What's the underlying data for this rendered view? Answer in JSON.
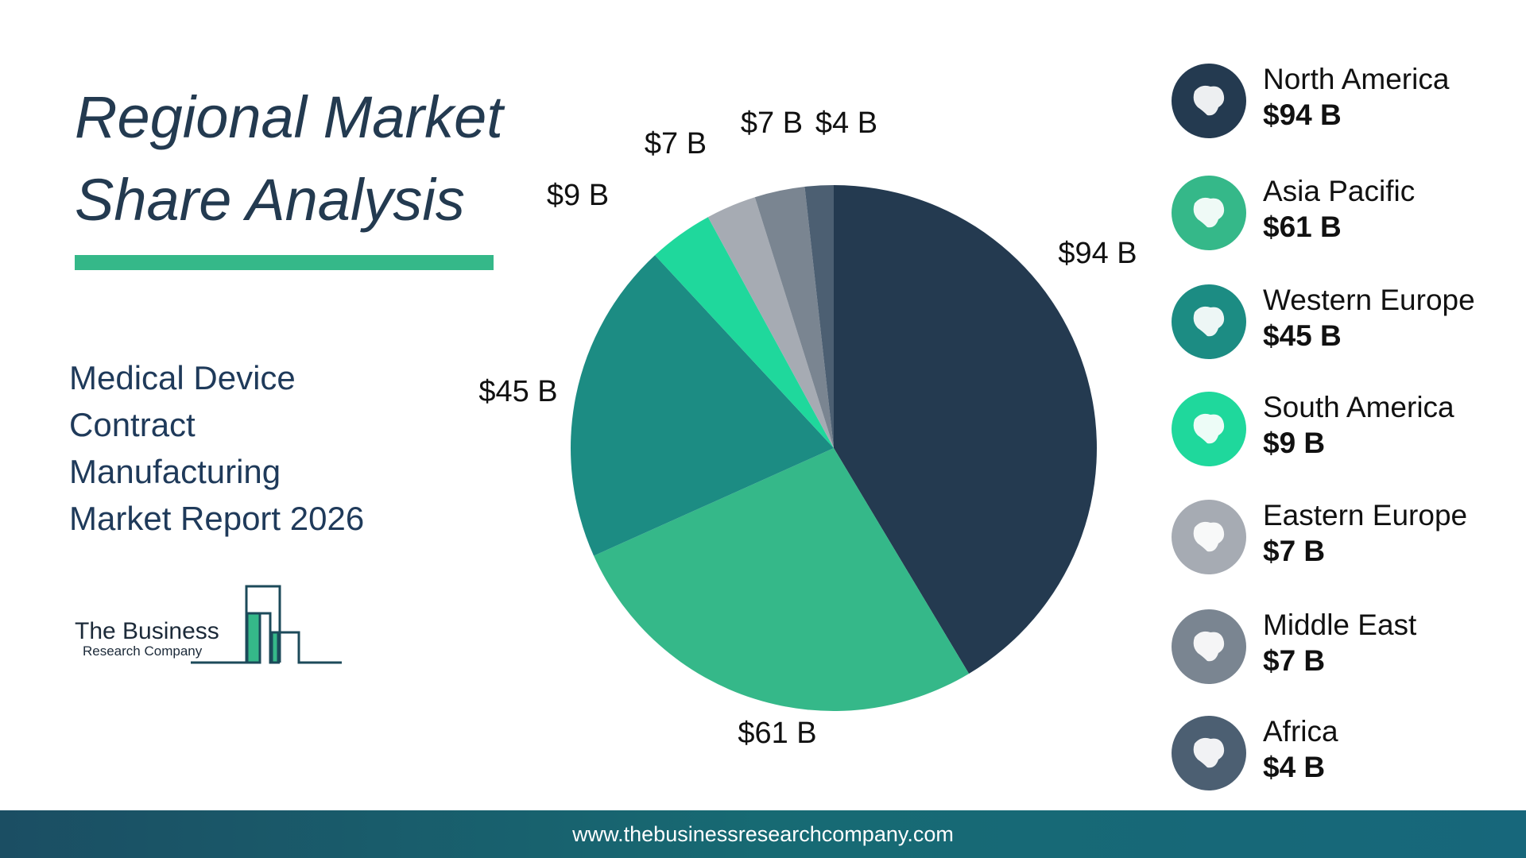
{
  "title": {
    "line1": "Regional Market",
    "line2": "Share Analysis"
  },
  "subtitle": {
    "line1": "Medical Device",
    "line2": "Contract",
    "line3": "Manufacturing",
    "line4": "Market Report 2026"
  },
  "logo": {
    "name": "The Business",
    "sub": "Research Company"
  },
  "footer": {
    "url": "www.thebusinessresearchcompany.com"
  },
  "legend": [
    {
      "name": "North America",
      "value": "$94 B",
      "color": "#243a50",
      "icon": "north-america-map-icon"
    },
    {
      "name": "Asia Pacific",
      "value": "$61 B",
      "color": "#35b889",
      "icon": "asia-pacific-map-icon"
    },
    {
      "name": "Western Europe",
      "value": "$45 B",
      "color": "#1c8c83",
      "icon": "western-europe-map-icon"
    },
    {
      "name": "South America",
      "value": "$9 B",
      "color": "#1fd89c",
      "icon": "south-america-map-icon"
    },
    {
      "name": "Eastern Europe",
      "value": "$7 B",
      "color": "#a6abb3",
      "icon": "eastern-europe-map-icon"
    },
    {
      "name": "Middle East",
      "value": "$7 B",
      "color": "#7a8591",
      "icon": "middle-east-map-icon"
    },
    {
      "name": "Africa",
      "value": "$4 B",
      "color": "#4c5f72",
      "icon": "africa-map-icon"
    }
  ],
  "chart_data": {
    "type": "pie",
    "categories": [
      "North America",
      "Asia Pacific",
      "Western Europe",
      "South America",
      "Eastern Europe",
      "Middle East",
      "Africa"
    ],
    "values": [
      94,
      61,
      45,
      9,
      7,
      7,
      4
    ],
    "labels": [
      "$94 B",
      "$61 B",
      "$45 B",
      "$9 B",
      "$7 B",
      "$7 B",
      "$4 B"
    ],
    "colors": [
      "#243a50",
      "#35b889",
      "#1c8c83",
      "#1fd89c",
      "#a6abb3",
      "#7a8591",
      "#4c5f72"
    ],
    "start": "12 o'clock",
    "direction": "clockwise"
  }
}
